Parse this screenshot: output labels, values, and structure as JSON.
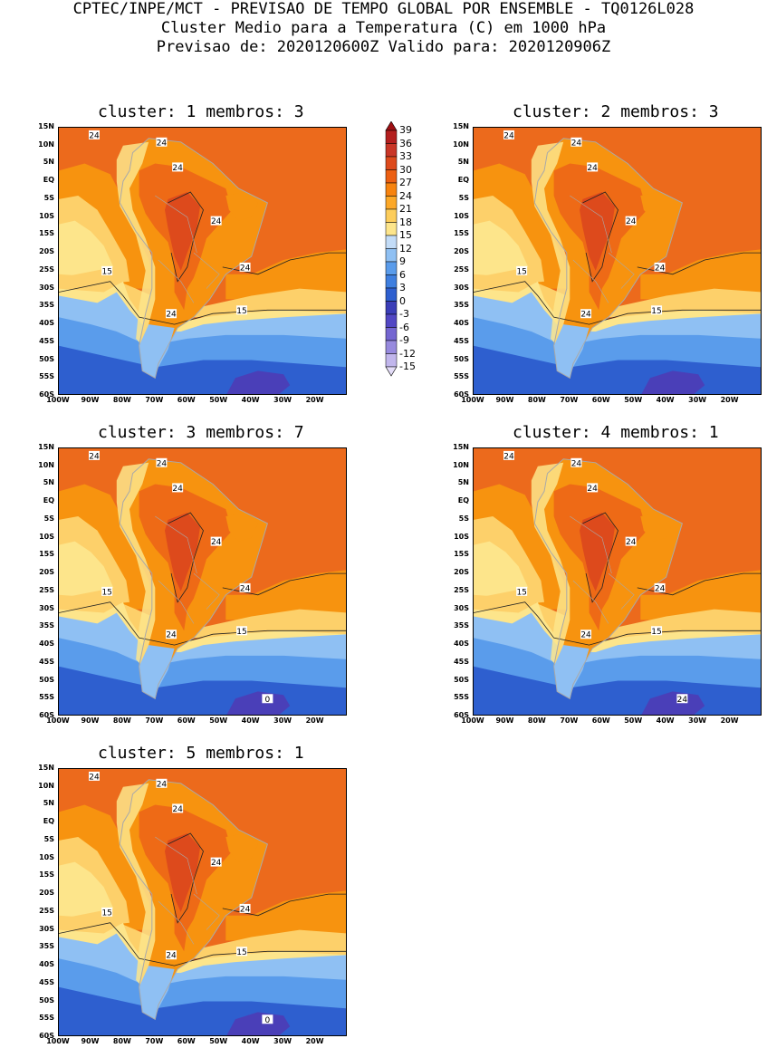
{
  "header": {
    "line1": "CPTEC/INPE/MCT - PREVISAO DE TEMPO GLOBAL POR ENSEMBLE - TQ0126L028",
    "line2": "Cluster Medio para a Temperatura (C) em 1000 hPa",
    "line3": "Previsao de: 2020120600Z   Valido para: 2020120906Z"
  },
  "panels": [
    {
      "title": "cluster: 1  membros: 3",
      "contour_labels": [
        "24",
        "24",
        "24",
        "24",
        "24",
        "24",
        "15",
        "15"
      ]
    },
    {
      "title": "cluster: 2  membros: 3",
      "contour_labels": [
        "24",
        "24",
        "24",
        "24",
        "24",
        "24",
        "15",
        "15"
      ]
    },
    {
      "title": "cluster: 3  membros: 7",
      "contour_labels": [
        "24",
        "24",
        "24",
        "24",
        "24",
        "24",
        "15",
        "15",
        "0"
      ]
    },
    {
      "title": "cluster: 4  membros: 1",
      "contour_labels": [
        "24",
        "24",
        "24",
        "24",
        "24",
        "24",
        "15",
        "15",
        "24"
      ]
    },
    {
      "title": "cluster: 5  membros: 1",
      "contour_labels": [
        "24",
        "24",
        "24",
        "24",
        "24",
        "24",
        "15",
        "15",
        "0"
      ]
    }
  ],
  "lat_labels": [
    "15N",
    "10N",
    "5N",
    "EQ",
    "5S",
    "10S",
    "15S",
    "20S",
    "25S",
    "30S",
    "35S",
    "40S",
    "45S",
    "50S",
    "55S",
    "60S"
  ],
  "lon_labels": [
    "100W",
    "90W",
    "80W",
    "70W",
    "60W",
    "50W",
    "40W",
    "30W",
    "20W"
  ],
  "colorbar": {
    "levels": [
      "39",
      "36",
      "33",
      "30",
      "27",
      "24",
      "21",
      "18",
      "15",
      "12",
      "9",
      "6",
      "3",
      "0",
      "-3",
      "-6",
      "-9",
      "-12",
      "-15"
    ],
    "colors": [
      "#9e0f12",
      "#b41f1f",
      "#c93627",
      "#dd4a1c",
      "#ec5f12",
      "#f7830f",
      "#fca828",
      "#fdcd5b",
      "#fde58b",
      "#c3dcf7",
      "#8fc0f3",
      "#5a9ceb",
      "#3f7fdf",
      "#2e5fcf",
      "#3b3eb8",
      "#5247c4",
      "#7466d1",
      "#978ade",
      "#c1b6ec",
      "#e4ddf8"
    ]
  },
  "colors": {
    "ocean_warm": "#ec6a1c",
    "land_hot": "#dd4a1c",
    "mid_warm": "#f7930f",
    "yellow": "#fdd06a",
    "pale": "#fde58b",
    "blue_light": "#8fc0f3",
    "blue_mid": "#5a9ceb",
    "blue_deep": "#2e5fcf",
    "purple": "#4a3fb8",
    "coast": "#a9a9a9"
  }
}
